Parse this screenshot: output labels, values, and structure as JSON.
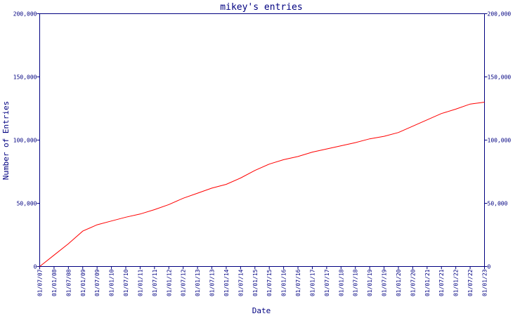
{
  "chart_data": {
    "type": "line",
    "title": "mikey's entries",
    "xlabel": "Date",
    "ylabel": "Number of Entries",
    "ylim": [
      0,
      200000
    ],
    "y_ticks": [
      0,
      50000,
      100000,
      150000,
      200000
    ],
    "y_tick_labels": [
      "0",
      "50,000",
      "100,000",
      "150,000",
      "200,000"
    ],
    "x_tick_labels": [
      "01/07/07",
      "01/01/08",
      "01/07/08",
      "01/01/09",
      "01/07/09",
      "01/01/10",
      "01/07/10",
      "01/01/11",
      "01/07/11",
      "01/01/12",
      "01/07/12",
      "01/01/13",
      "01/07/13",
      "01/01/14",
      "01/07/14",
      "01/01/15",
      "01/07/15",
      "01/01/16",
      "01/07/16",
      "01/01/17",
      "01/07/17",
      "01/01/18",
      "01/07/18",
      "01/01/19",
      "01/07/19",
      "01/01/20",
      "01/07/20",
      "01/01/21",
      "01/07/21",
      "01/01/22",
      "01/07/22",
      "01/01/23"
    ],
    "grid": false,
    "series": [
      {
        "color": "#ff0000",
        "x": [
          "01/07/07",
          "01/01/08",
          "01/07/08",
          "01/01/09",
          "01/07/09",
          "01/01/10",
          "01/07/10",
          "01/01/11",
          "01/07/11",
          "01/01/12",
          "01/07/12",
          "01/01/13",
          "01/07/13",
          "01/01/14",
          "01/07/14",
          "01/01/15",
          "01/07/15",
          "01/01/16",
          "01/07/16",
          "01/01/17",
          "01/07/17",
          "01/01/18",
          "01/07/18",
          "01/01/19",
          "01/07/19",
          "01/01/20",
          "01/07/20",
          "01/01/21",
          "01/07/21",
          "01/01/22",
          "01/07/22",
          "01/01/23"
        ],
        "values": [
          0,
          9000,
          18000,
          28000,
          33000,
          36000,
          39000,
          41500,
          45000,
          49000,
          54000,
          58000,
          62000,
          65000,
          70000,
          76000,
          81000,
          84500,
          87000,
          90500,
          93000,
          95500,
          98000,
          101000,
          103000,
          106000,
          111000,
          116000,
          121000,
          124500,
          128500,
          130000
        ]
      }
    ]
  }
}
